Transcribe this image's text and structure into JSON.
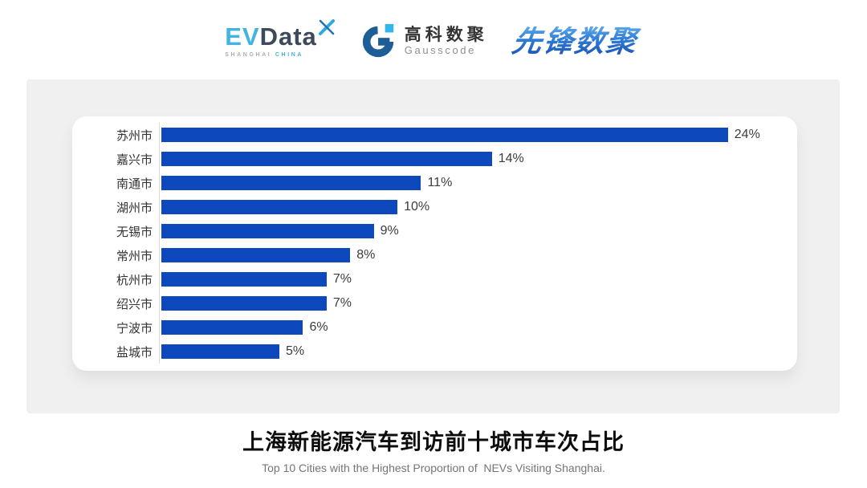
{
  "header": {
    "evdata": {
      "ev": "EV",
      "data": "Data",
      "caption_city": "SHANGHAI",
      "caption_country": "CHINA"
    },
    "gausscode": {
      "cn": "高科数聚",
      "en": "Gausscode"
    },
    "pioneer": "先锋数聚"
  },
  "chart_data": {
    "type": "bar",
    "orientation": "horizontal",
    "title": "上海新能源汽车到访前十城市车次占比",
    "categories": [
      "苏州市",
      "嘉兴市",
      "南通市",
      "湖州市",
      "无锡市",
      "常州市",
      "杭州市",
      "绍兴市",
      "宁波市",
      "盐城市"
    ],
    "values": [
      24,
      14,
      11,
      10,
      9,
      8,
      7,
      7,
      6,
      5
    ],
    "unit": "%",
    "xlim": [
      0,
      27
    ],
    "grid": false,
    "legend": false,
    "bar_color": "#0d49bc"
  },
  "footer": {
    "title": "上海新能源汽车到访前十城市车次占比",
    "subtitle": "Top 10 Cities with the Highest Proportion of  NEVs Visiting Shanghai."
  },
  "colors": {
    "bar": "#0d49bc",
    "panel_background": "#f0f0f0",
    "card_background": "#ffffff",
    "axis_line": "#dcdcdc",
    "label_text": "#333333",
    "value_text": "#3c3c3c",
    "title_text": "#0d0d0d",
    "subtitle_text": "#757575",
    "evdata_blue": "#41b4e6",
    "evdata_dark": "#3d4a5c",
    "gauss_blue": "#1e5e96",
    "gauss_light_blue": "#35b6e9",
    "pioneer_blue": "#2e7bd2"
  }
}
